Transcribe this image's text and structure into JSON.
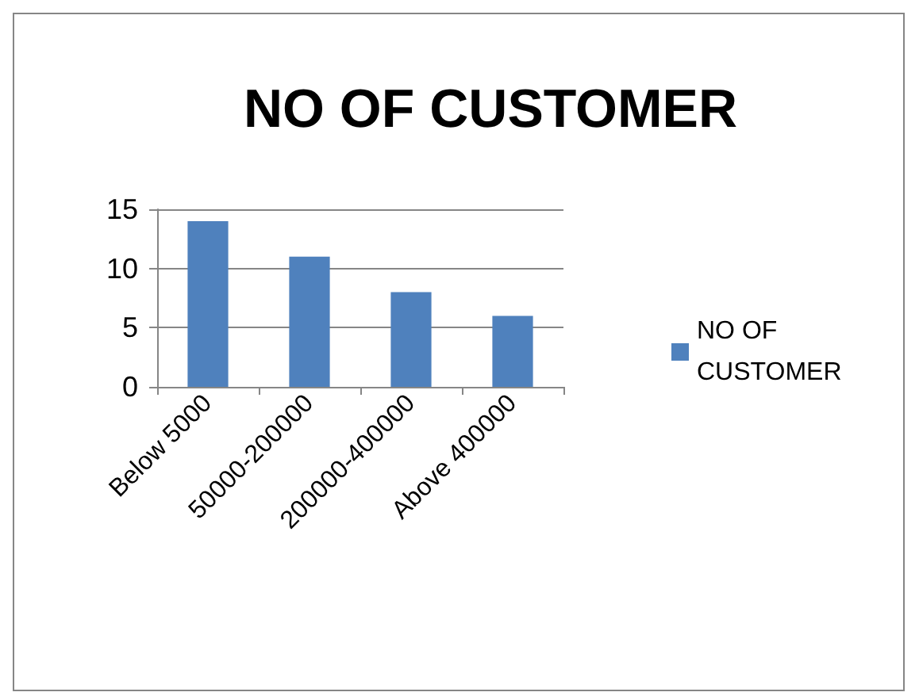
{
  "chart_data": {
    "type": "bar",
    "title": "NO OF CUSTOMER",
    "categories": [
      "Below 5000",
      "50000-200000",
      "200000-400000",
      "Above 400000"
    ],
    "series": [
      {
        "name": "NO OF CUSTOMER",
        "color": "#4f81bd",
        "values": [
          14,
          11,
          8,
          6
        ]
      }
    ],
    "ylim": [
      0,
      15
    ],
    "yticks": [
      0,
      5,
      10,
      15
    ],
    "grid": "y",
    "legend": "right"
  }
}
